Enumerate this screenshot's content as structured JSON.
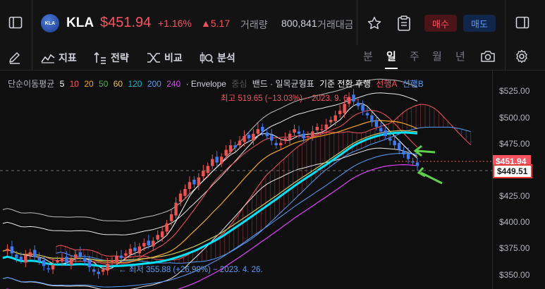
{
  "header": {
    "symbol": "KLA",
    "logo_text": "KLA",
    "price": "$451.94",
    "change_pct": "+1.16%",
    "change_abs": "▲5.17",
    "volume_label": "거래량",
    "volume_value": "800,841",
    "volume_label2": "거래대금",
    "buy_label": "매수",
    "sell_label": "매도"
  },
  "toolbar": {
    "indicators_label": "지표",
    "strategy_label": "전략",
    "compare_label": "비교",
    "analysis_label": "분석",
    "timeframes": [
      "분",
      "일",
      "주",
      "월",
      "년"
    ],
    "active_timeframe": "일"
  },
  "legend": {
    "ma_label": "단순이동평균",
    "ma_periods": [
      "5",
      "10",
      "20",
      "50",
      "60",
      "120",
      "200",
      "240"
    ],
    "ma_colors": [
      "#ffffff",
      "#f7525f",
      "#f5a623",
      "#4caf50",
      "#e0c060",
      "#00bcd4",
      "#5b9cf6",
      "#e040fb"
    ],
    "envelope_label": "· Envelope",
    "envelope_extra": "중심",
    "bands_label": "밴드 · 일목균형표",
    "ichimoku_label": "기준 전환 후행",
    "span_a": "선행A",
    "span_b": "선행B"
  },
  "annotations": {
    "high": "최고 519.65 (−13.03%) − 2023. 9. 6. →",
    "low": "← 최저 355.88 (+26.99%) − 2023. 4. 26."
  },
  "axis": {
    "ticks": [
      "$525.00",
      "$500.00",
      "$475.00",
      "$425.00",
      "$400.00",
      "$375.00",
      "$350.00"
    ],
    "last_price_tag": "$451.94",
    "crosshair_tag": "$449.51"
  },
  "chart_data": {
    "type": "candlestick",
    "ylim": [
      345,
      535
    ],
    "last_price": 451.94,
    "crosshair_price": 449.51,
    "high": {
      "value": 519.65,
      "date": "2023. 9. 6."
    },
    "low": {
      "value": 355.88,
      "date": "2023. 4. 26."
    },
    "close_series": [
      378,
      380,
      376,
      372,
      370,
      374,
      377,
      373,
      369,
      365,
      362,
      366,
      370,
      372,
      368,
      371,
      375,
      373,
      369,
      364,
      360,
      358,
      362,
      367,
      370,
      374,
      372,
      376,
      380,
      378,
      382,
      385,
      383,
      387,
      392,
      395,
      402,
      410,
      420,
      428,
      432,
      438,
      436,
      442,
      448,
      452,
      458,
      455,
      460,
      466,
      470,
      468,
      474,
      478,
      476,
      480,
      484,
      482,
      478,
      474,
      470,
      472,
      476,
      480,
      484,
      480,
      476,
      478,
      482,
      486,
      484,
      488,
      492,
      496,
      500,
      506,
      512,
      508,
      504,
      500,
      496,
      490,
      486,
      482,
      478,
      474,
      470,
      466,
      462,
      458,
      455,
      452
    ]
  }
}
